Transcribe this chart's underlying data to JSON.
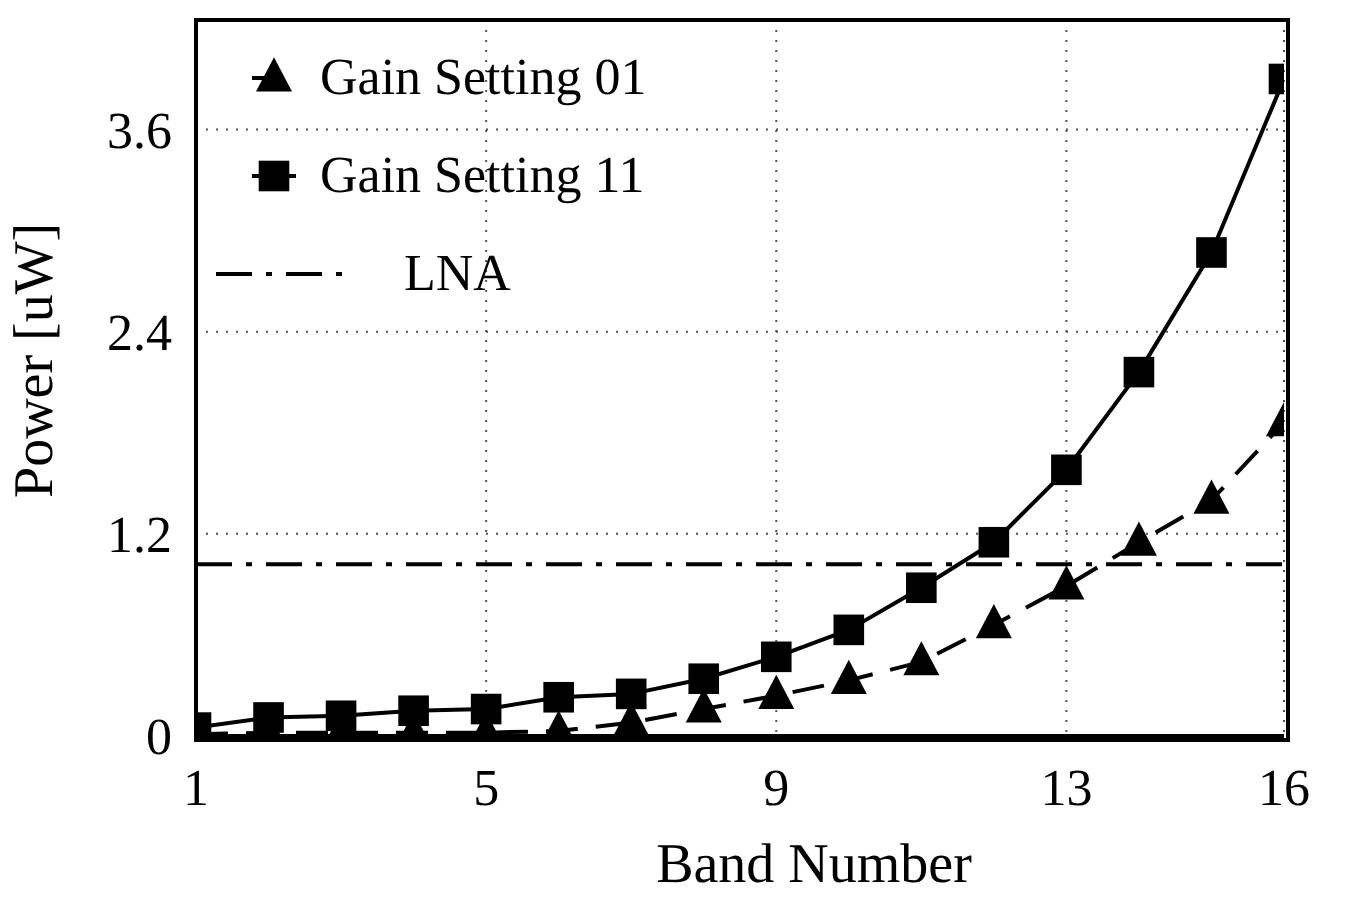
{
  "chart_data": {
    "type": "line",
    "xlabel": "Band Number",
    "ylabel": "Power [uW]",
    "x": [
      1,
      2,
      3,
      4,
      5,
      6,
      7,
      8,
      9,
      10,
      11,
      12,
      13,
      14,
      15,
      16
    ],
    "series": [
      {
        "name": "Gain Setting 01",
        "color": "#000000",
        "marker": "triangle",
        "line_style": "dashed",
        "values": [
          0.01,
          0.02,
          0.02,
          0.02,
          0.02,
          0.03,
          0.08,
          0.16,
          0.24,
          0.33,
          0.44,
          0.66,
          0.89,
          1.15,
          1.4,
          1.86
        ]
      },
      {
        "name": "Gain Setting 11",
        "color": "#000000",
        "marker": "square",
        "line_style": "solid",
        "values": [
          0.05,
          0.11,
          0.12,
          0.15,
          0.16,
          0.23,
          0.25,
          0.34,
          0.47,
          0.63,
          0.88,
          1.15,
          1.58,
          2.16,
          2.87,
          3.9
        ]
      },
      {
        "name": "LNA",
        "color": "#000000",
        "marker": "none",
        "line_style": "dashed",
        "x": [
          1,
          16
        ],
        "values": [
          1.02,
          1.02
        ]
      }
    ],
    "xlim": [
      1,
      16
    ],
    "xticks": [
      1,
      5,
      9,
      13,
      16
    ],
    "ylim": [
      0,
      4.25
    ],
    "yticks": [
      0,
      1.2,
      2.4,
      3.6
    ],
    "grid": true,
    "legend": "top left"
  }
}
